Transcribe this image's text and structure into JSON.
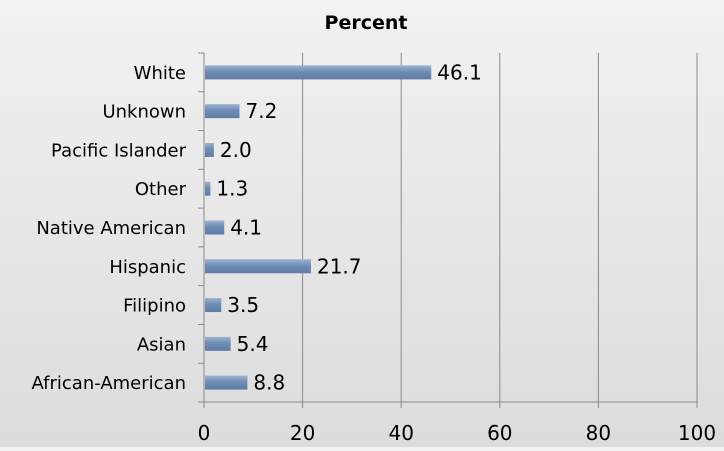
{
  "chart_data": {
    "type": "bar",
    "orientation": "horizontal",
    "title": "Percent",
    "xlabel": "",
    "ylabel": "",
    "categories": [
      "White",
      "Unknown",
      "Pacific Islander",
      "Other",
      "Native American",
      "Hispanic",
      "Filipino",
      "Asian",
      "African-American"
    ],
    "values": [
      46.1,
      7.2,
      2.0,
      1.3,
      4.1,
      21.7,
      3.5,
      5.4,
      8.8
    ],
    "data_labels": [
      "46.1",
      "7.2",
      "2.0",
      "1.3",
      "4.1",
      "21.7",
      "3.5",
      "5.4",
      "8.8"
    ],
    "xlim": [
      0,
      100
    ],
    "xticks": [
      0,
      20,
      40,
      60,
      80,
      100
    ],
    "xtick_labels": [
      "0",
      "20",
      "40",
      "60",
      "80",
      "100"
    ],
    "grid": "vertical",
    "legend": "none",
    "bar_color": "#5e7ca6",
    "bar_highlight_color": "#9db3d1",
    "grid_color": "#8a8a8a"
  }
}
